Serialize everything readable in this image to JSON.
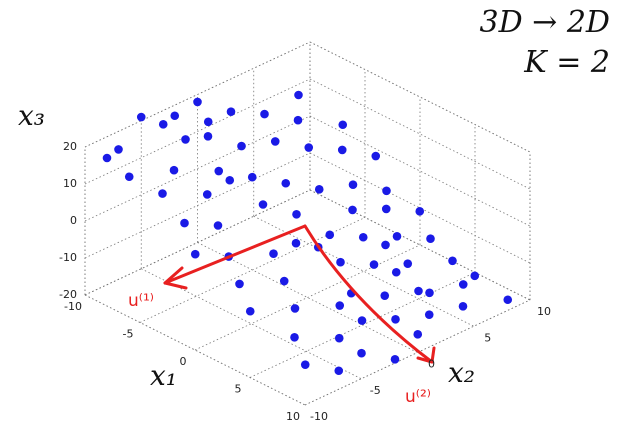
{
  "chart_data": {
    "type": "scatter3d",
    "title": "3D → 2D",
    "subtitle": "K = 2",
    "xlabel": "x₁",
    "ylabel": "x₂",
    "zlabel": "x₃",
    "xlim": [
      -10,
      10
    ],
    "ylim": [
      -10,
      10
    ],
    "zlim": [
      -20,
      20
    ],
    "xticks": [
      -10,
      -5,
      0,
      5,
      10
    ],
    "yticks": [
      -10,
      -5,
      0,
      5,
      10
    ],
    "zticks": [
      -20,
      -10,
      0,
      10,
      20
    ],
    "grid": true,
    "color": "#1a1ae6",
    "points": [
      [
        -9,
        -8,
        18
      ],
      [
        -8,
        -5,
        22
      ],
      [
        -7,
        -9,
        15
      ],
      [
        -9,
        -3,
        20
      ],
      [
        -6,
        -6,
        14
      ],
      [
        -8,
        -1,
        17
      ],
      [
        -5,
        -8,
        12
      ],
      [
        -7,
        -2,
        16
      ],
      [
        -9,
        2,
        14
      ],
      [
        -6,
        0,
        12
      ],
      [
        -4,
        -5,
        9
      ],
      [
        -5,
        -3,
        11
      ],
      [
        -8,
        4,
        12
      ],
      [
        -3,
        -8,
        7
      ],
      [
        -6,
        3,
        9
      ],
      [
        -4,
        -1,
        8
      ],
      [
        -7,
        6,
        9
      ],
      [
        -2,
        -6,
        5
      ],
      [
        -5,
        5,
        6
      ],
      [
        -3,
        1,
        5
      ],
      [
        -9,
        8,
        10
      ],
      [
        -1,
        -9,
        3
      ],
      [
        -4,
        7,
        4
      ],
      [
        -2,
        3,
        2
      ],
      [
        -6,
        9,
        5
      ],
      [
        0,
        -7,
        1
      ],
      [
        -1,
        0,
        1
      ],
      [
        -3,
        9,
        1
      ],
      [
        1,
        -4,
        -1
      ],
      [
        0,
        4,
        -2
      ],
      [
        2,
        -8,
        -2
      ],
      [
        -2,
        6,
        -1
      ],
      [
        1,
        1,
        -3
      ],
      [
        3,
        -5,
        -4
      ],
      [
        -1,
        8,
        -4
      ],
      [
        2,
        3,
        -5
      ],
      [
        4,
        -9,
        -5
      ],
      [
        0,
        7,
        -6
      ],
      [
        3,
        0,
        -6
      ],
      [
        5,
        -6,
        -7
      ],
      [
        1,
        9,
        -8
      ],
      [
        4,
        2,
        -8
      ],
      [
        6,
        -3,
        -9
      ],
      [
        2,
        6,
        -9
      ],
      [
        5,
        -1,
        -10
      ],
      [
        7,
        -8,
        -9
      ],
      [
        3,
        8,
        -11
      ],
      [
        6,
        1,
        -12
      ],
      [
        8,
        -5,
        -12
      ],
      [
        4,
        5,
        -12
      ],
      [
        7,
        -2,
        -13
      ],
      [
        9,
        -9,
        -12
      ],
      [
        5,
        8,
        -14
      ],
      [
        8,
        0,
        -14
      ],
      [
        6,
        4,
        -15
      ],
      [
        9,
        -4,
        -16
      ],
      [
        7,
        7,
        -16
      ],
      [
        10,
        -7,
        -15
      ],
      [
        8,
        3,
        -17
      ],
      [
        6,
        9,
        -18
      ],
      [
        9,
        1,
        -18
      ],
      [
        10,
        -2,
        -19
      ],
      [
        8,
        6,
        -19
      ],
      [
        9,
        9,
        -20
      ],
      [
        -8,
        -10,
        20
      ],
      [
        -10,
        -5,
        21
      ],
      [
        -10,
        0,
        18
      ],
      [
        -7,
        -4,
        18
      ],
      [
        -4,
        -3,
        10
      ],
      [
        1,
        -2,
        -1
      ],
      [
        2,
        -1,
        -2
      ],
      [
        -2,
        -2,
        5
      ],
      [
        3,
        4,
        -7
      ],
      [
        5,
        3,
        -10
      ],
      [
        7,
        4,
        -14
      ]
    ]
  },
  "annotations": [
    "u⁽¹⁾",
    "u⁽²⁾"
  ]
}
